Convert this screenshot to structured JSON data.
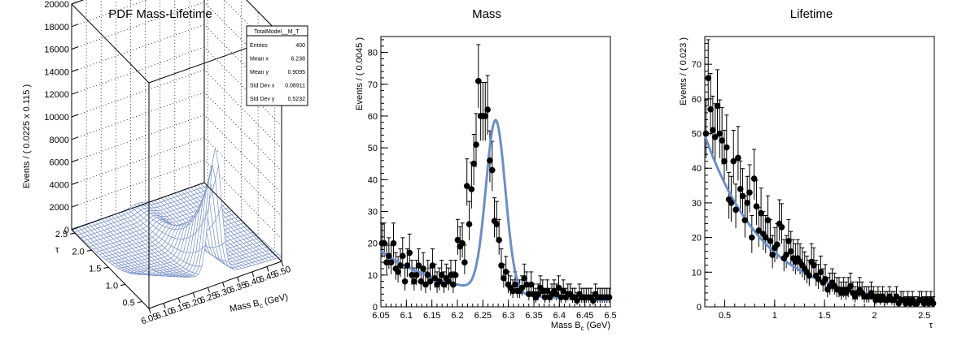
{
  "chart_data": [
    {
      "type": "surface",
      "title": "PDF Mass-Lifetime",
      "zlabel": "Events / ( 0.0225 x 0.115 )",
      "xlabel_main": "Mass B",
      "xlabel_sub": "c",
      "xlabel_unit": " (GeV)",
      "ylabel": "τ",
      "xlim": [
        6.05,
        6.5
      ],
      "ylim": [
        0.3,
        2.6
      ],
      "zlim": [
        0,
        20000
      ],
      "x_ticks": [
        "6.05",
        "6.10",
        "6.15",
        "6.20",
        "6.25",
        "6.30",
        "6.35",
        "6.40",
        "6.45",
        "6.50"
      ],
      "y_ticks": [
        "0.5",
        "1.0",
        "1.5",
        "2.0",
        "2.5"
      ],
      "z_ticks": [
        "0",
        "2000",
        "4000",
        "6000",
        "8000",
        "10000",
        "12000",
        "14000",
        "16000",
        "18000",
        "20000"
      ],
      "grid": true,
      "stats": {
        "name": "TotalModel__M_T",
        "rows": [
          [
            "Entries",
            "400"
          ],
          [
            "Mean x",
            "6.238"
          ],
          [
            "Mean y",
            "0.9095"
          ],
          [
            "Std Dev x",
            "0.08911"
          ],
          [
            "Std Dev y",
            "0.5232"
          ]
        ]
      }
    },
    {
      "type": "scatter",
      "title": "Mass",
      "ylabel": "Events / ( 0.0045 )",
      "xlabel_main": "Mass B",
      "xlabel_sub": "c",
      "xlabel_unit": " (GeV)",
      "xlim": [
        6.05,
        6.5
      ],
      "ylim": [
        0,
        85
      ],
      "x_ticks": [
        "6.05",
        "6.1",
        "6.15",
        "6.2",
        "6.25",
        "6.3",
        "6.35",
        "6.4",
        "6.45",
        "6.5"
      ],
      "y_ticks": [
        "0",
        "10",
        "20",
        "30",
        "40",
        "50",
        "60",
        "70",
        "80"
      ],
      "points_x": [
        6.0522,
        6.0567,
        6.0612,
        6.0657,
        6.0702,
        6.0747,
        6.0792,
        6.0837,
        6.0882,
        6.0927,
        6.0972,
        6.1017,
        6.1062,
        6.1107,
        6.1152,
        6.1197,
        6.1242,
        6.1287,
        6.1332,
        6.1377,
        6.1422,
        6.1467,
        6.1512,
        6.1557,
        6.1602,
        6.1647,
        6.1692,
        6.1737,
        6.1782,
        6.1827,
        6.1872,
        6.1917,
        6.1962,
        6.2007,
        6.2052,
        6.2097,
        6.2142,
        6.2187,
        6.2232,
        6.2277,
        6.2322,
        6.2367,
        6.2412,
        6.2457,
        6.2502,
        6.2547,
        6.2592,
        6.2637,
        6.2682,
        6.2727,
        6.2772,
        6.2817,
        6.2862,
        6.2907,
        6.2952,
        6.2997,
        6.3042,
        6.3087,
        6.3132,
        6.3177,
        6.3222,
        6.3267,
        6.3312,
        6.3357,
        6.3402,
        6.3447,
        6.3492,
        6.3537,
        6.3582,
        6.3627,
        6.3672,
        6.3717,
        6.3762,
        6.3807,
        6.3852,
        6.3897,
        6.3942,
        6.3987,
        6.4032,
        6.4077,
        6.4122,
        6.4167,
        6.4212,
        6.4257,
        6.4302,
        6.4347,
        6.4392,
        6.4437,
        6.4482,
        6.4527,
        6.4572,
        6.4617,
        6.4662,
        6.4707,
        6.4752,
        6.4797,
        6.4842,
        6.4887,
        6.4932,
        6.4977
      ],
      "points_y": [
        20,
        20,
        14,
        16,
        14,
        20,
        12,
        11,
        13,
        16,
        8,
        13,
        17,
        10,
        8,
        10,
        13,
        8,
        12,
        7,
        10,
        8,
        13,
        9,
        7,
        8,
        10,
        7,
        9,
        8,
        10,
        7,
        10,
        21,
        19,
        20,
        14,
        38,
        26,
        37,
        45,
        51,
        71,
        60,
        60,
        60,
        62,
        46,
        43,
        27,
        26,
        21,
        13,
        9,
        11,
        7,
        6,
        5,
        7,
        5,
        5,
        6,
        9,
        7,
        4,
        7,
        4,
        3,
        4,
        6,
        5,
        3,
        5,
        3,
        4,
        5,
        4,
        6,
        3,
        5,
        3,
        4,
        4,
        3,
        3,
        2,
        4,
        3,
        3,
        3,
        3,
        3,
        2,
        4,
        3,
        3,
        3,
        3,
        3,
        3
      ],
      "curve_label": "fit",
      "grid": false
    },
    {
      "type": "scatter",
      "title": "Lifetime",
      "ylabel": "Events / ( 0.023 )",
      "xlabel": "τ",
      "xlim": [
        0.3,
        2.6
      ],
      "ylim": [
        0,
        78
      ],
      "x_ticks": [
        "0.5",
        "1",
        "1.5",
        "2",
        "2.5"
      ],
      "y_ticks": [
        "0",
        "10",
        "20",
        "30",
        "40",
        "50",
        "60",
        "70"
      ],
      "points_x": [
        0.3115,
        0.3345,
        0.3575,
        0.3805,
        0.4035,
        0.4265,
        0.4495,
        0.4725,
        0.4955,
        0.5185,
        0.5415,
        0.5645,
        0.5875,
        0.6105,
        0.6335,
        0.6565,
        0.6795,
        0.7025,
        0.7255,
        0.7485,
        0.7715,
        0.7945,
        0.8175,
        0.8405,
        0.8635,
        0.8865,
        0.9095,
        0.9325,
        0.9555,
        0.9785,
        1.0015,
        1.0245,
        1.0475,
        1.0705,
        1.0935,
        1.1165,
        1.1395,
        1.1625,
        1.1855,
        1.2085,
        1.2315,
        1.2545,
        1.2775,
        1.3005,
        1.3235,
        1.3465,
        1.3695,
        1.3925,
        1.4155,
        1.4385,
        1.4615,
        1.4845,
        1.5075,
        1.5305,
        1.5535,
        1.5765,
        1.5995,
        1.6225,
        1.6455,
        1.6685,
        1.6915,
        1.7145,
        1.7375,
        1.7605,
        1.7835,
        1.8065,
        1.8295,
        1.8525,
        1.8755,
        1.8985,
        1.9215,
        1.9445,
        1.9675,
        1.9905,
        2.0135,
        2.0365,
        2.0595,
        2.0825,
        2.1055,
        2.1285,
        2.1515,
        2.1745,
        2.1975,
        2.2205,
        2.2435,
        2.2665,
        2.2895,
        2.3125,
        2.3355,
        2.3585,
        2.3815,
        2.4045,
        2.4275,
        2.4505,
        2.4735,
        2.4965,
        2.5195,
        2.5425,
        2.5655,
        2.5885
      ],
      "points_y": [
        50,
        66,
        57,
        51,
        49,
        58,
        50,
        48,
        42,
        46,
        31,
        30,
        42,
        28,
        43,
        34,
        32,
        25,
        30,
        33,
        20,
        37,
        29,
        22,
        27,
        21,
        20,
        25,
        19,
        15,
        17,
        18,
        24,
        23,
        14,
        15,
        19,
        16,
        14,
        13,
        14,
        13,
        12,
        11,
        10,
        9,
        13,
        12,
        9,
        8,
        10,
        7,
        8,
        5,
        6,
        7,
        6,
        5,
        5,
        4,
        5,
        4,
        5,
        6,
        4,
        3,
        4,
        5,
        4,
        3,
        3,
        3,
        4,
        3,
        2,
        3,
        2,
        3,
        2,
        2,
        3,
        2,
        2,
        3,
        1,
        2,
        2,
        1,
        2,
        1,
        2,
        1,
        1,
        2,
        2,
        1,
        2,
        1,
        2,
        1
      ],
      "curve_label": "fit",
      "grid": false
    }
  ],
  "colors": {
    "curve": "#6d8ecb",
    "marker": "#000000",
    "mesh": "#7f97cd"
  }
}
